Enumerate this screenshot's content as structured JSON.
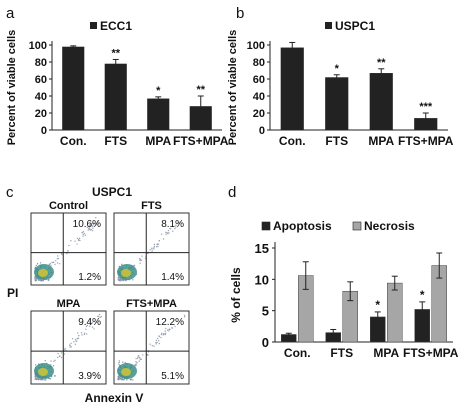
{
  "panels": {
    "a": "a",
    "b": "b",
    "c": "c",
    "d": "d"
  },
  "chart_data": [
    {
      "type": "bar",
      "title": "ECC1",
      "categories": [
        "Con.",
        "FTS",
        "MPA",
        "FTS+MPA"
      ],
      "series": [
        {
          "name": "ECC1",
          "values": [
            98,
            78,
            37,
            28
          ]
        }
      ],
      "errors": [
        1,
        5,
        2,
        12
      ],
      "significance": [
        "",
        "**",
        "*",
        "**"
      ],
      "ylabel": "Percent of viable cells",
      "ylim": [
        0,
        100
      ],
      "yticks": [
        0,
        20,
        40,
        60,
        80,
        100
      ]
    },
    {
      "type": "bar",
      "title": "USPC1",
      "categories": [
        "Con.",
        "FTS",
        "MPA",
        "FTS+MPA"
      ],
      "series": [
        {
          "name": "USPC1",
          "values": [
            97,
            62,
            67,
            14
          ]
        }
      ],
      "errors": [
        6,
        3,
        5,
        6
      ],
      "significance": [
        "",
        "*",
        "**",
        "***"
      ],
      "ylabel": "Percent of viable cells",
      "ylim": [
        0,
        100
      ],
      "yticks": [
        0,
        20,
        40,
        60,
        80,
        100
      ]
    },
    {
      "type": "scatter",
      "title": "USPC1",
      "ylabel": "PI",
      "xlabel": "Annexin V",
      "plots": [
        {
          "label": "Control",
          "upper_right": "10.6%",
          "lower_right": "1.2%"
        },
        {
          "label": "FTS",
          "upper_right": "8.1%",
          "lower_right": "1.4%"
        },
        {
          "label": "MPA",
          "upper_right": "9.4%",
          "lower_right": "3.9%"
        },
        {
          "label": "FTS+MPA",
          "upper_right": "12.2%",
          "lower_right": "5.1%"
        }
      ]
    },
    {
      "type": "bar",
      "categories": [
        "Con.",
        "FTS",
        "MPA",
        "FTS+MPA"
      ],
      "series": [
        {
          "name": "Apoptosis",
          "values": [
            1.2,
            1.5,
            4.0,
            5.2
          ],
          "errors": [
            0.2,
            0.5,
            0.8,
            1.2
          ]
        },
        {
          "name": "Necrosis",
          "values": [
            10.6,
            8.1,
            9.4,
            12.2
          ],
          "errors": [
            2.2,
            1.5,
            1.1,
            2.0
          ]
        }
      ],
      "significance": [
        "",
        "",
        "*",
        "*"
      ],
      "ylabel": "% of cells",
      "ylim": [
        0,
        15
      ],
      "yticks": [
        0,
        5,
        10,
        15
      ],
      "legend": "top",
      "colors": {
        "Apoptosis": "#222222",
        "Necrosis": "#a6a6a6"
      }
    }
  ]
}
